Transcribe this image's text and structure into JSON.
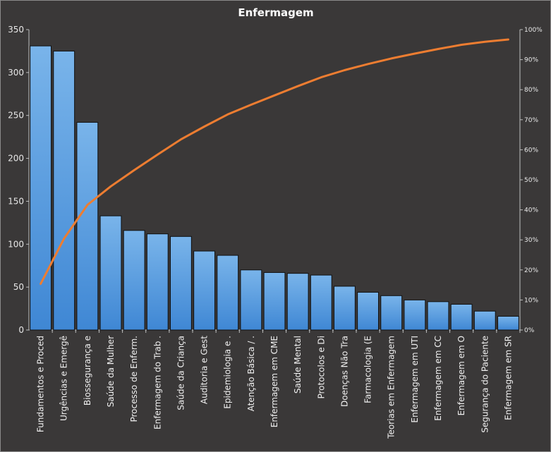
{
  "chart_data": {
    "type": "bar",
    "title": "Enfermagem",
    "categories": [
      "Fundamentos  e Proced",
      "Urgências e Emergê",
      "Biossegurança e",
      "Saúde da Mulher",
      "Processo de Enferm.",
      "Enfermagem do Trab .",
      "Saúde da Criança",
      "Auditoria e Gest",
      "Epidemiologia e .",
      "Atenção Básica / .",
      "Enfermagem em CME",
      "Saúde Mental",
      "Protocolos  e Di",
      "Doenças Não Tra",
      "Farmacologia (E",
      "Teorias em Enfermagem",
      "Enfermagem em UTI",
      "Enfermagem  em CC",
      "Enfermagem  em O",
      "Segurança do Paciente",
      "Enfermagem  em SR"
    ],
    "series": [
      {
        "type": "bar",
        "axis": "left",
        "values": [
          331,
          325,
          242,
          133,
          116,
          112,
          109,
          92,
          87,
          70,
          67,
          66,
          64,
          51,
          44,
          40,
          35,
          33,
          30,
          22,
          16
        ]
      },
      {
        "type": "line",
        "axis": "right",
        "values": [
          0.1535,
          0.3043,
          0.4165,
          0.4782,
          0.532,
          0.5839,
          0.6345,
          0.6772,
          0.7175,
          0.75,
          0.7811,
          0.8117,
          0.8414,
          0.865,
          0.8855,
          0.904,
          0.9202,
          0.9355,
          0.9495,
          0.9597,
          0.9671
        ]
      }
    ],
    "ylim": [
      0,
      350
    ],
    "yticks": [
      "0",
      "50",
      "100",
      "150",
      "200",
      "250",
      "300",
      "350"
    ],
    "y2lim": [
      0,
      1
    ],
    "y2ticks": [
      "0%",
      "10%",
      "20%",
      "30%",
      "40%",
      "50%",
      "60%",
      "70%",
      "80%",
      "90%",
      "100%"
    ],
    "grid": false,
    "colors": {
      "bar": "#5a9ee0",
      "bar_top": "#79b4ea",
      "bar_edge": "#111111",
      "line": "#ed7d31",
      "background": "#3a3838",
      "text": "#ffffff"
    }
  }
}
